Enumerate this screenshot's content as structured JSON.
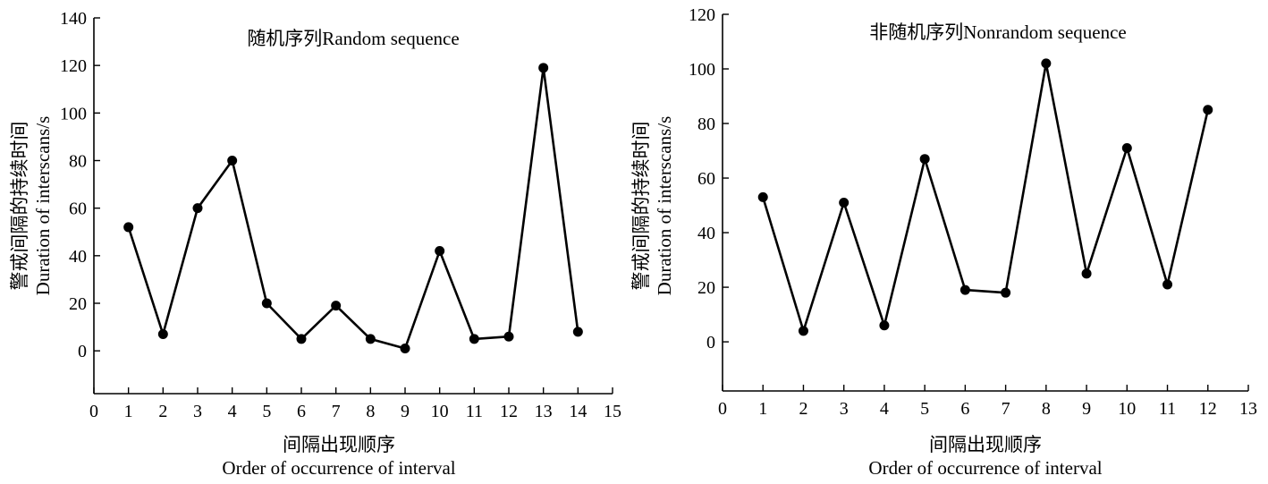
{
  "chart_data": [
    {
      "type": "line",
      "title": "随机序列Random sequence",
      "xlabel_cn": "间隔出现顺序",
      "xlabel_en": "Order of occurrence of interval",
      "ylabel_cn": "警戒间隔的持续时间",
      "ylabel_en": "Duration of interscans/s",
      "xlim": [
        0,
        15
      ],
      "ylim": [
        -18,
        140
      ],
      "xticks": [
        0,
        1,
        2,
        3,
        4,
        5,
        6,
        7,
        8,
        9,
        10,
        11,
        12,
        13,
        14,
        15
      ],
      "yticks": [
        0,
        20,
        40,
        60,
        80,
        100,
        120,
        140
      ],
      "grid": false,
      "x": [
        1,
        2,
        3,
        4,
        5,
        6,
        7,
        8,
        9,
        10,
        11,
        12,
        13,
        14
      ],
      "values": [
        52,
        7,
        60,
        80,
        20,
        5,
        19,
        5,
        1,
        42,
        5,
        6,
        119,
        8
      ]
    },
    {
      "type": "line",
      "title": "非随机序列Nonrandom sequence",
      "xlabel_cn": "间隔出现顺序",
      "xlabel_en": "Order of occurrence of interval",
      "ylabel_cn": "警戒间隔的持续时间",
      "ylabel_en": "Duration of interscans/s",
      "xlim": [
        0,
        13
      ],
      "ylim": [
        -18,
        120
      ],
      "xticks": [
        0,
        1,
        2,
        3,
        4,
        5,
        6,
        7,
        8,
        9,
        10,
        11,
        12,
        13
      ],
      "yticks": [
        0,
        20,
        40,
        60,
        80,
        100,
        120
      ],
      "grid": false,
      "x": [
        1,
        2,
        3,
        4,
        5,
        6,
        7,
        8,
        9,
        10,
        11,
        12
      ],
      "values": [
        53,
        4,
        51,
        6,
        67,
        19,
        18,
        102,
        25,
        71,
        21,
        85
      ]
    }
  ]
}
